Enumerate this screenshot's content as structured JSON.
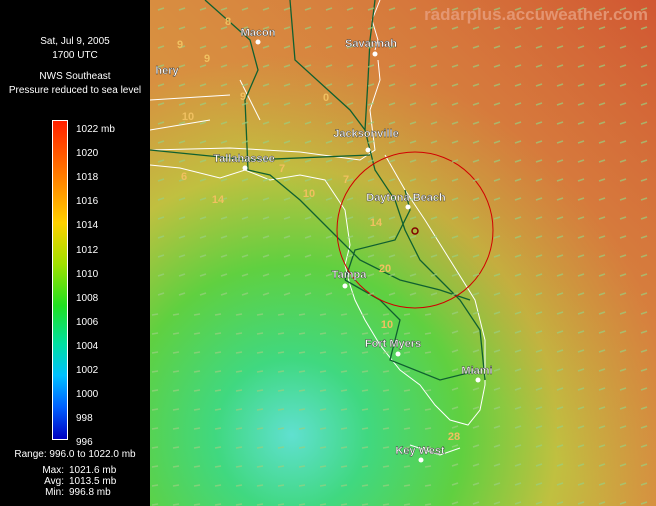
{
  "sidebar": {
    "date": "Sat, Jul 9, 2005",
    "time": "1700 UTC",
    "source": "NWS Southeast",
    "product": "Pressure reduced to sea level",
    "legend_ticks": [
      "1022 mb",
      "1020",
      "1018",
      "1016",
      "1014",
      "1012",
      "1010",
      "1008",
      "1006",
      "1004",
      "1002",
      "1000",
      "998",
      "996"
    ],
    "range": "Range: 996.0 to 1022.0 mb",
    "stats": [
      {
        "label": "Max:",
        "value": "1021.6 mb"
      },
      {
        "label": "Avg:",
        "value": "1013.5 mb"
      },
      {
        "label": "Min:",
        "value": "996.8 mb"
      }
    ]
  },
  "map": {
    "watermark": "radarplus.accuweather.com",
    "cities": [
      "Macon",
      "Savannah",
      "hery",
      "Jacksonville",
      "Tallahassee",
      "Daytona Beach",
      "Tampa",
      "Fort Myers",
      "Miami",
      "Key West"
    ],
    "wind_labels": [
      "8",
      "9",
      "9",
      "9",
      "0",
      "10",
      "6",
      "7",
      "14",
      "10",
      "7",
      "14",
      "20",
      "10",
      "28"
    ]
  }
}
